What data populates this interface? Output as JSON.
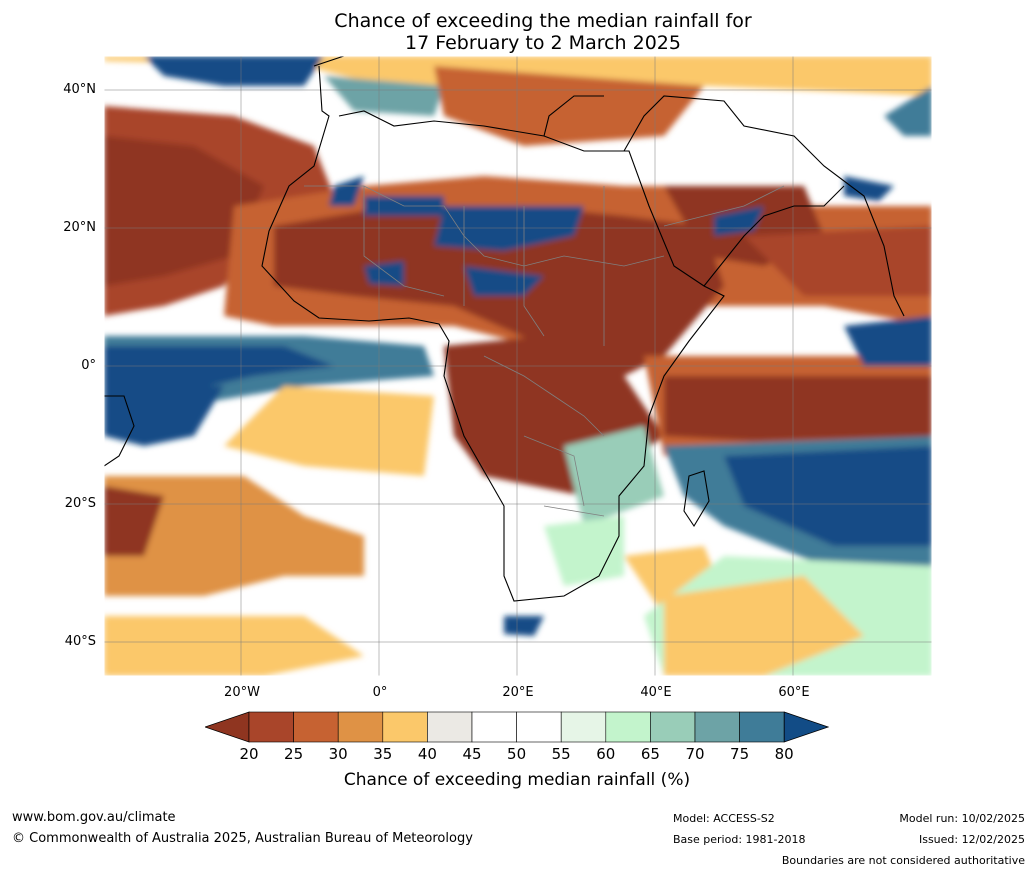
{
  "title": {
    "line1": "Chance of exceeding the median rainfall for",
    "line2": "17 February to 2 March 2025"
  },
  "axes": {
    "lat_labels": [
      "40°N",
      "20°N",
      "0°",
      "20°S",
      "40°S"
    ],
    "lon_labels": [
      "20°W",
      "0°",
      "20°E",
      "40°E",
      "60°E"
    ]
  },
  "colorbar": {
    "ticks": [
      "20",
      "25",
      "30",
      "35",
      "40",
      "45",
      "50",
      "55",
      "60",
      "65",
      "70",
      "75",
      "80"
    ],
    "label": "Chance of exceeding median rainfall (%)",
    "colors": [
      "#8f3520",
      "#a9452a",
      "#c66232",
      "#df9245",
      "#fbc86a",
      "#ebe9e4",
      "#ffffff",
      "#ffffff",
      "#e6f5e7",
      "#c3f4cc",
      "#99cdb8",
      "#6da3a6",
      "#3f7c98",
      "#124c86"
    ]
  },
  "footer": {
    "website": "www.bom.gov.au/climate",
    "copyright": "© Commonwealth of Australia 2025, Australian Bureau of Meteorology",
    "model": "Model: ACCESS-S2",
    "base_period": "Base period: 1981-2018",
    "model_run": "Model run: 10/02/2025",
    "issued": "Issued: 12/02/2025",
    "disclaimer": "Boundaries are not considered authoritative"
  }
}
